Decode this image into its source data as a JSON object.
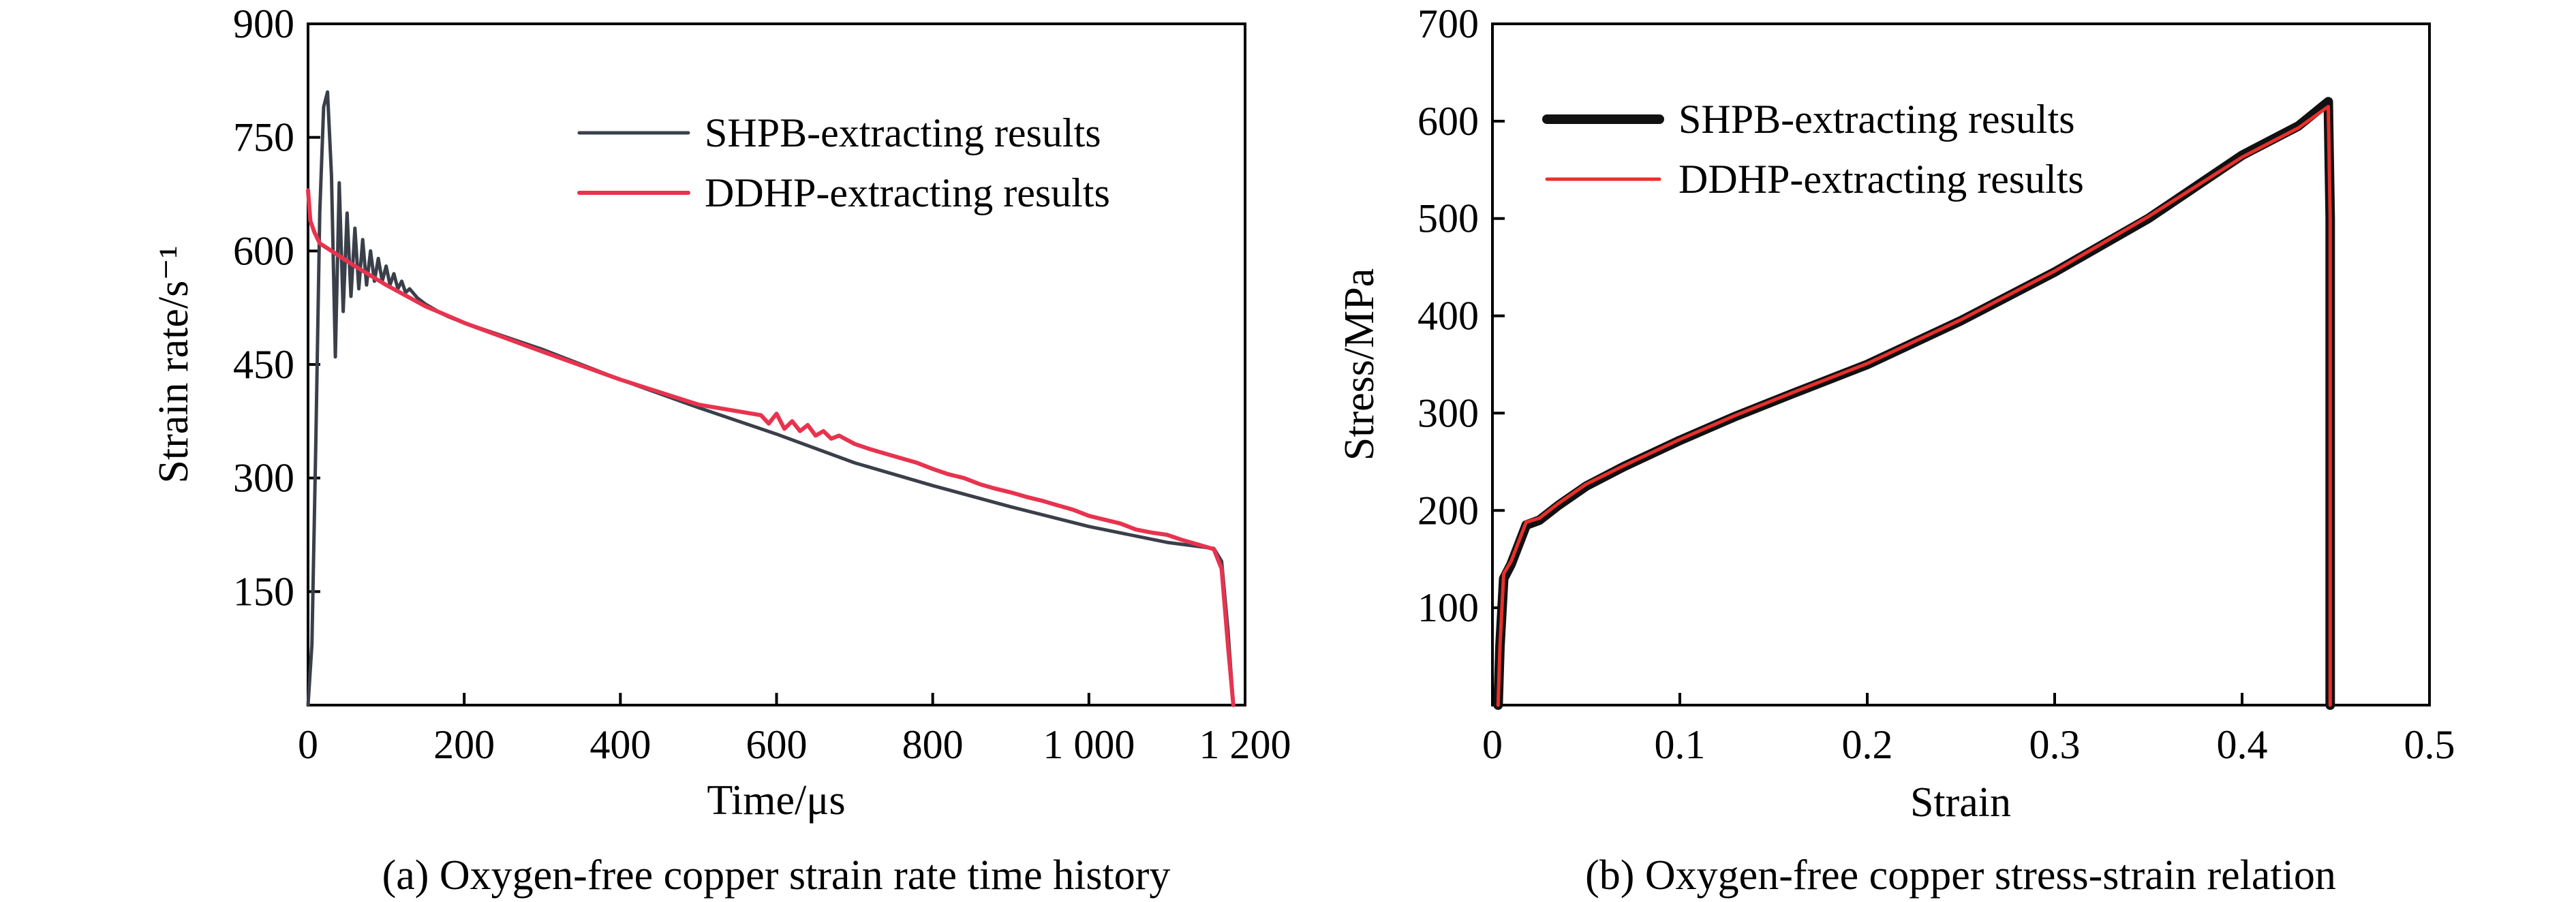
{
  "chart_data": [
    {
      "type": "line",
      "caption": "(a) Oxygen-free copper strain rate time history",
      "xlabel": "Time/μs",
      "ylabel": "Strain rate/s⁻¹",
      "xlim": [
        0,
        1200
      ],
      "ylim": [
        0,
        900
      ],
      "xticks": [
        {
          "value": 0,
          "label": "0"
        },
        {
          "value": 200,
          "label": "200"
        },
        {
          "value": 400,
          "label": "400"
        },
        {
          "value": 600,
          "label": "600"
        },
        {
          "value": 800,
          "label": "800"
        },
        {
          "value": 1000,
          "label": "1 000"
        },
        {
          "value": 1200,
          "label": "1 200"
        }
      ],
      "yticks": [
        {
          "value": 150,
          "label": "150"
        },
        {
          "value": 300,
          "label": "300"
        },
        {
          "value": 450,
          "label": "450"
        },
        {
          "value": 600,
          "label": "600"
        },
        {
          "value": 750,
          "label": "750"
        },
        {
          "value": 900,
          "label": "900"
        }
      ],
      "legend_position": "top-right",
      "grid": false,
      "series": [
        {
          "name": "SHPB-extracting results",
          "color": "#3a3f4a",
          "x": [
            0,
            5,
            10,
            15,
            20,
            25,
            30,
            35,
            40,
            45,
            50,
            55,
            60,
            65,
            70,
            75,
            80,
            85,
            90,
            95,
            100,
            105,
            110,
            115,
            120,
            125,
            130,
            140,
            150,
            160,
            170,
            180,
            200,
            300,
            400,
            500,
            600,
            700,
            800,
            900,
            1000,
            1100,
            1160,
            1170,
            1178,
            1185
          ],
          "y": [
            0,
            80,
            350,
            650,
            790,
            810,
            700,
            460,
            690,
            520,
            650,
            540,
            630,
            550,
            615,
            555,
            600,
            560,
            590,
            560,
            580,
            555,
            570,
            550,
            560,
            545,
            550,
            538,
            530,
            524,
            518,
            513,
            505,
            470,
            430,
            393,
            358,
            320,
            290,
            262,
            236,
            215,
            207,
            190,
            100,
            0
          ]
        },
        {
          "name": "DDHP-extracting results",
          "color": "#e8334e",
          "x": [
            0,
            3,
            8,
            15,
            30,
            60,
            100,
            150,
            200,
            300,
            400,
            500,
            580,
            590,
            600,
            610,
            620,
            630,
            640,
            650,
            660,
            670,
            680,
            700,
            720,
            740,
            760,
            780,
            800,
            820,
            840,
            860,
            880,
            900,
            920,
            940,
            960,
            980,
            1000,
            1020,
            1040,
            1060,
            1080,
            1100,
            1120,
            1140,
            1160,
            1170,
            1178,
            1185
          ],
          "y": [
            680,
            640,
            625,
            610,
            600,
            580,
            555,
            527,
            505,
            467,
            430,
            397,
            383,
            372,
            385,
            365,
            375,
            362,
            370,
            356,
            362,
            352,
            356,
            345,
            338,
            332,
            326,
            320,
            312,
            305,
            300,
            292,
            286,
            281,
            275,
            270,
            264,
            258,
            250,
            245,
            240,
            232,
            228,
            225,
            218,
            212,
            206,
            180,
            80,
            0
          ]
        }
      ]
    },
    {
      "type": "line",
      "caption": "(b) Oxygen-free copper stress-strain relation",
      "xlabel": "Strain",
      "ylabel": "Stress/MPa",
      "xlim": [
        0,
        0.5
      ],
      "ylim": [
        0,
        700
      ],
      "xticks": [
        {
          "value": 0,
          "label": "0"
        },
        {
          "value": 0.1,
          "label": "0.1"
        },
        {
          "value": 0.2,
          "label": "0.2"
        },
        {
          "value": 0.3,
          "label": "0.3"
        },
        {
          "value": 0.4,
          "label": "0.4"
        },
        {
          "value": 0.5,
          "label": "0.5"
        }
      ],
      "yticks": [
        {
          "value": 100,
          "label": "100"
        },
        {
          "value": 200,
          "label": "200"
        },
        {
          "value": 300,
          "label": "300"
        },
        {
          "value": 400,
          "label": "400"
        },
        {
          "value": 500,
          "label": "500"
        },
        {
          "value": 600,
          "label": "600"
        },
        {
          "value": 700,
          "label": "700"
        }
      ],
      "legend_position": "top-left",
      "grid": false,
      "series": [
        {
          "name": "SHPB-extracting results",
          "color": "#111111",
          "x": [
            0.003,
            0.004,
            0.006,
            0.01,
            0.013,
            0.018,
            0.025,
            0.035,
            0.05,
            0.07,
            0.1,
            0.13,
            0.16,
            0.2,
            0.25,
            0.3,
            0.35,
            0.4,
            0.43,
            0.446,
            0.447,
            0.447
          ],
          "y": [
            0,
            60,
            130,
            145,
            160,
            185,
            190,
            205,
            225,
            245,
            272,
            297,
            320,
            350,
            395,
            445,
            500,
            565,
            595,
            620,
            500,
            0
          ]
        },
        {
          "name": "DDHP-extracting results",
          "color": "#e8302c",
          "x": [
            0.003,
            0.004,
            0.006,
            0.01,
            0.013,
            0.018,
            0.025,
            0.035,
            0.05,
            0.07,
            0.1,
            0.13,
            0.16,
            0.2,
            0.25,
            0.3,
            0.35,
            0.4,
            0.43,
            0.446,
            0.447,
            0.447
          ],
          "y": [
            0,
            60,
            135,
            148,
            163,
            188,
            192,
            207,
            227,
            246,
            273,
            298,
            321,
            351,
            396,
            446,
            502,
            563,
            593,
            615,
            500,
            0
          ]
        }
      ]
    }
  ]
}
